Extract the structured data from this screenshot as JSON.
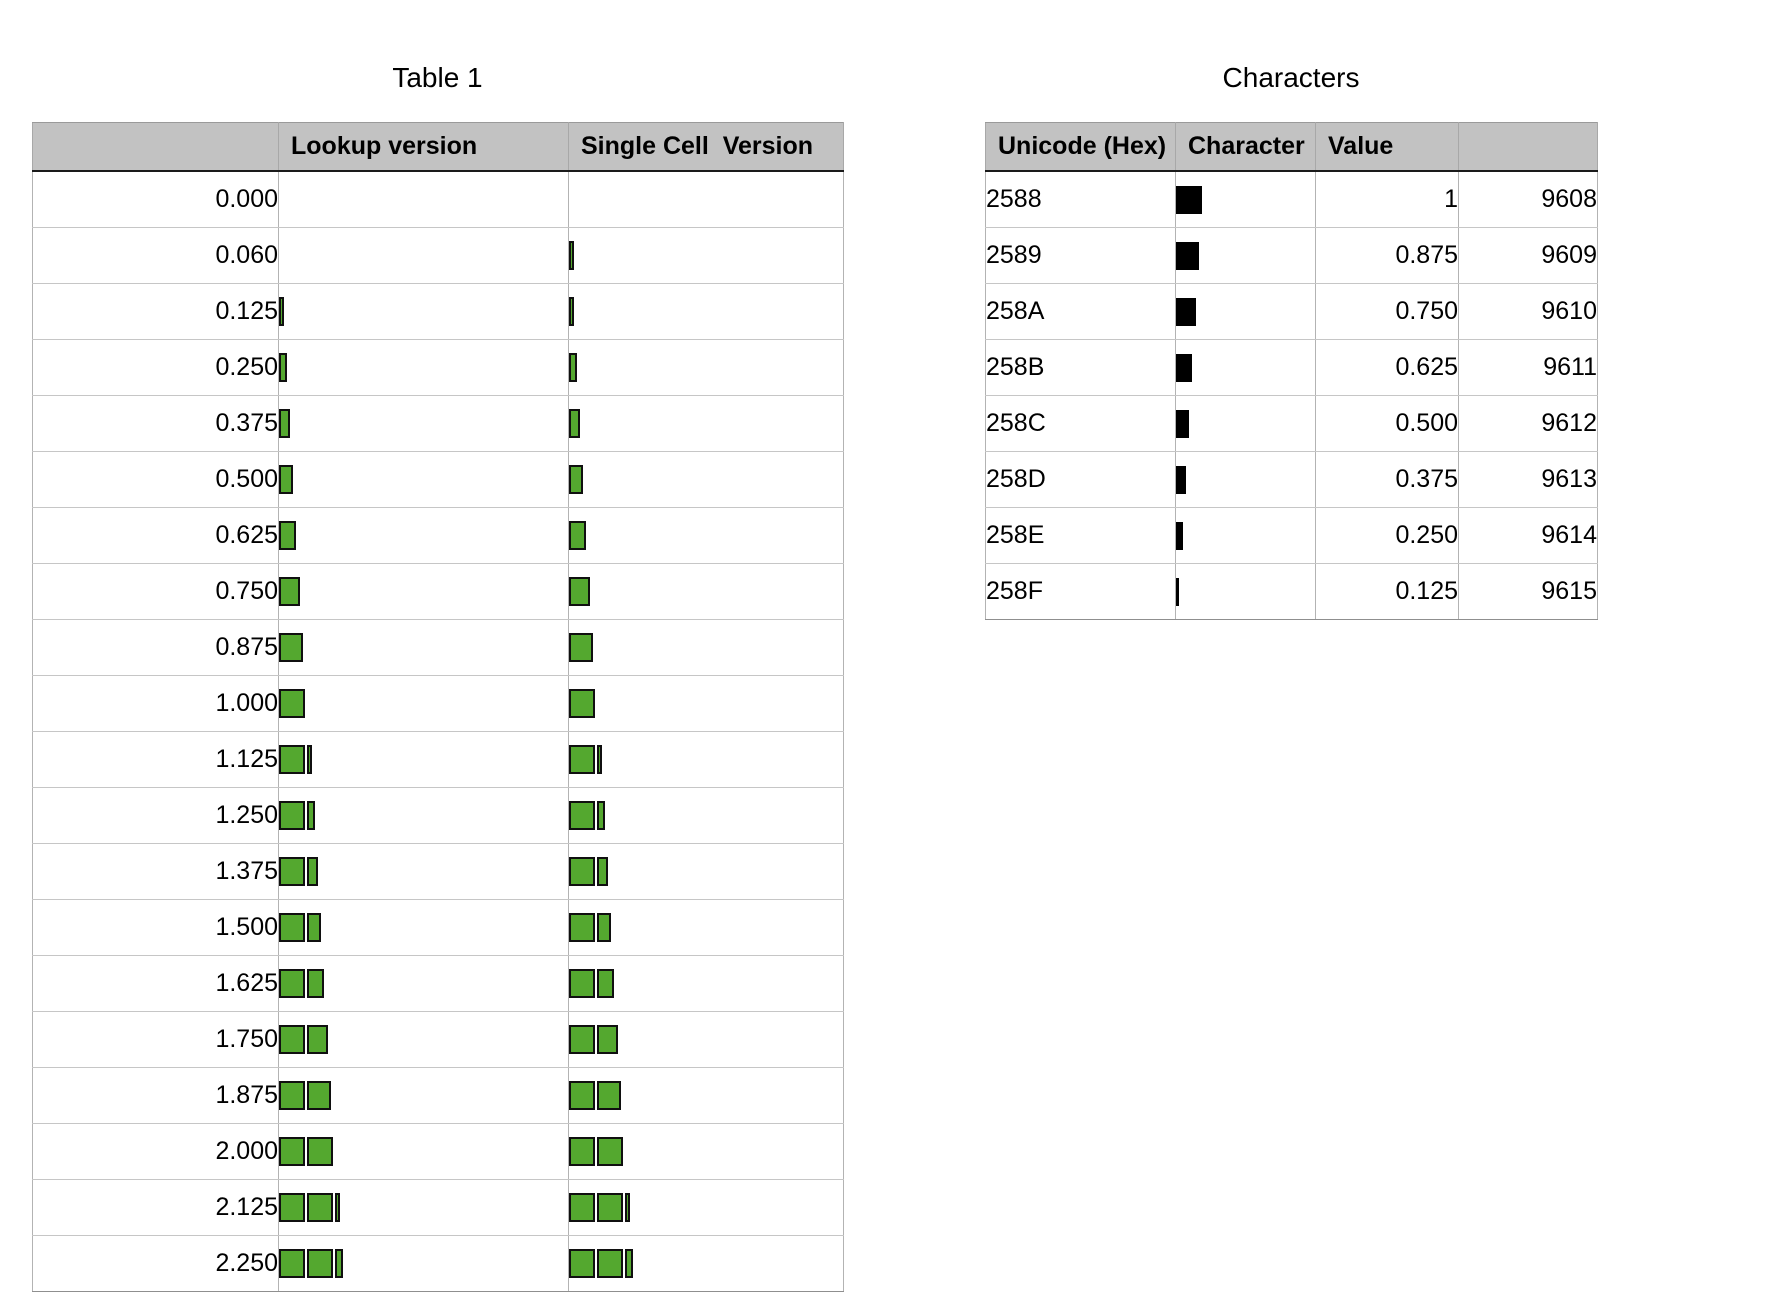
{
  "table1": {
    "title": "Table 1",
    "columns": [
      "",
      "Lookup version",
      "Single Cell  Version"
    ],
    "bar_color": "#54a82f",
    "bar_border_color": "#101010",
    "rows": [
      {
        "label": "0.000",
        "value": 0
      },
      {
        "label": "0.060",
        "value": 0.06
      },
      {
        "label": "0.125",
        "value": 0.125
      },
      {
        "label": "0.250",
        "value": 0.25
      },
      {
        "label": "0.375",
        "value": 0.375
      },
      {
        "label": "0.500",
        "value": 0.5
      },
      {
        "label": "0.625",
        "value": 0.625
      },
      {
        "label": "0.750",
        "value": 0.75
      },
      {
        "label": "0.875",
        "value": 0.875
      },
      {
        "label": "1.000",
        "value": 1
      },
      {
        "label": "1.125",
        "value": 1.125
      },
      {
        "label": "1.250",
        "value": 1.25
      },
      {
        "label": "1.375",
        "value": 1.375
      },
      {
        "label": "1.500",
        "value": 1.5
      },
      {
        "label": "1.625",
        "value": 1.625
      },
      {
        "label": "1.750",
        "value": 1.75
      },
      {
        "label": "1.875",
        "value": 1.875
      },
      {
        "label": "2.000",
        "value": 2
      },
      {
        "label": "2.125",
        "value": 2.125
      },
      {
        "label": "2.250",
        "value": 2.25
      }
    ]
  },
  "characters": {
    "title": "Characters",
    "columns": [
      "Unicode (Hex)",
      "Character",
      "Value",
      ""
    ],
    "rows": [
      {
        "hex": "2588",
        "char": "█",
        "value": "1",
        "decimal": "9608"
      },
      {
        "hex": "2589",
        "char": "▉",
        "value": "0.875",
        "decimal": "9609"
      },
      {
        "hex": "258A",
        "char": "▊",
        "value": "0.750",
        "decimal": "9610"
      },
      {
        "hex": "258B",
        "char": "▋",
        "value": "0.625",
        "decimal": "9611"
      },
      {
        "hex": "258C",
        "char": "▌",
        "value": "0.500",
        "decimal": "9612"
      },
      {
        "hex": "258D",
        "char": "▍",
        "value": "0.375",
        "decimal": "9613"
      },
      {
        "hex": "258E",
        "char": "▎",
        "value": "0.250",
        "decimal": "9614"
      },
      {
        "hex": "258F",
        "char": "▏",
        "value": "0.125",
        "decimal": "9615"
      }
    ]
  },
  "colors": {
    "header_bg": "#c2c2c2",
    "page_bg": "#ffffff",
    "green_fill": "#54a82f",
    "block_black": "#000000"
  }
}
